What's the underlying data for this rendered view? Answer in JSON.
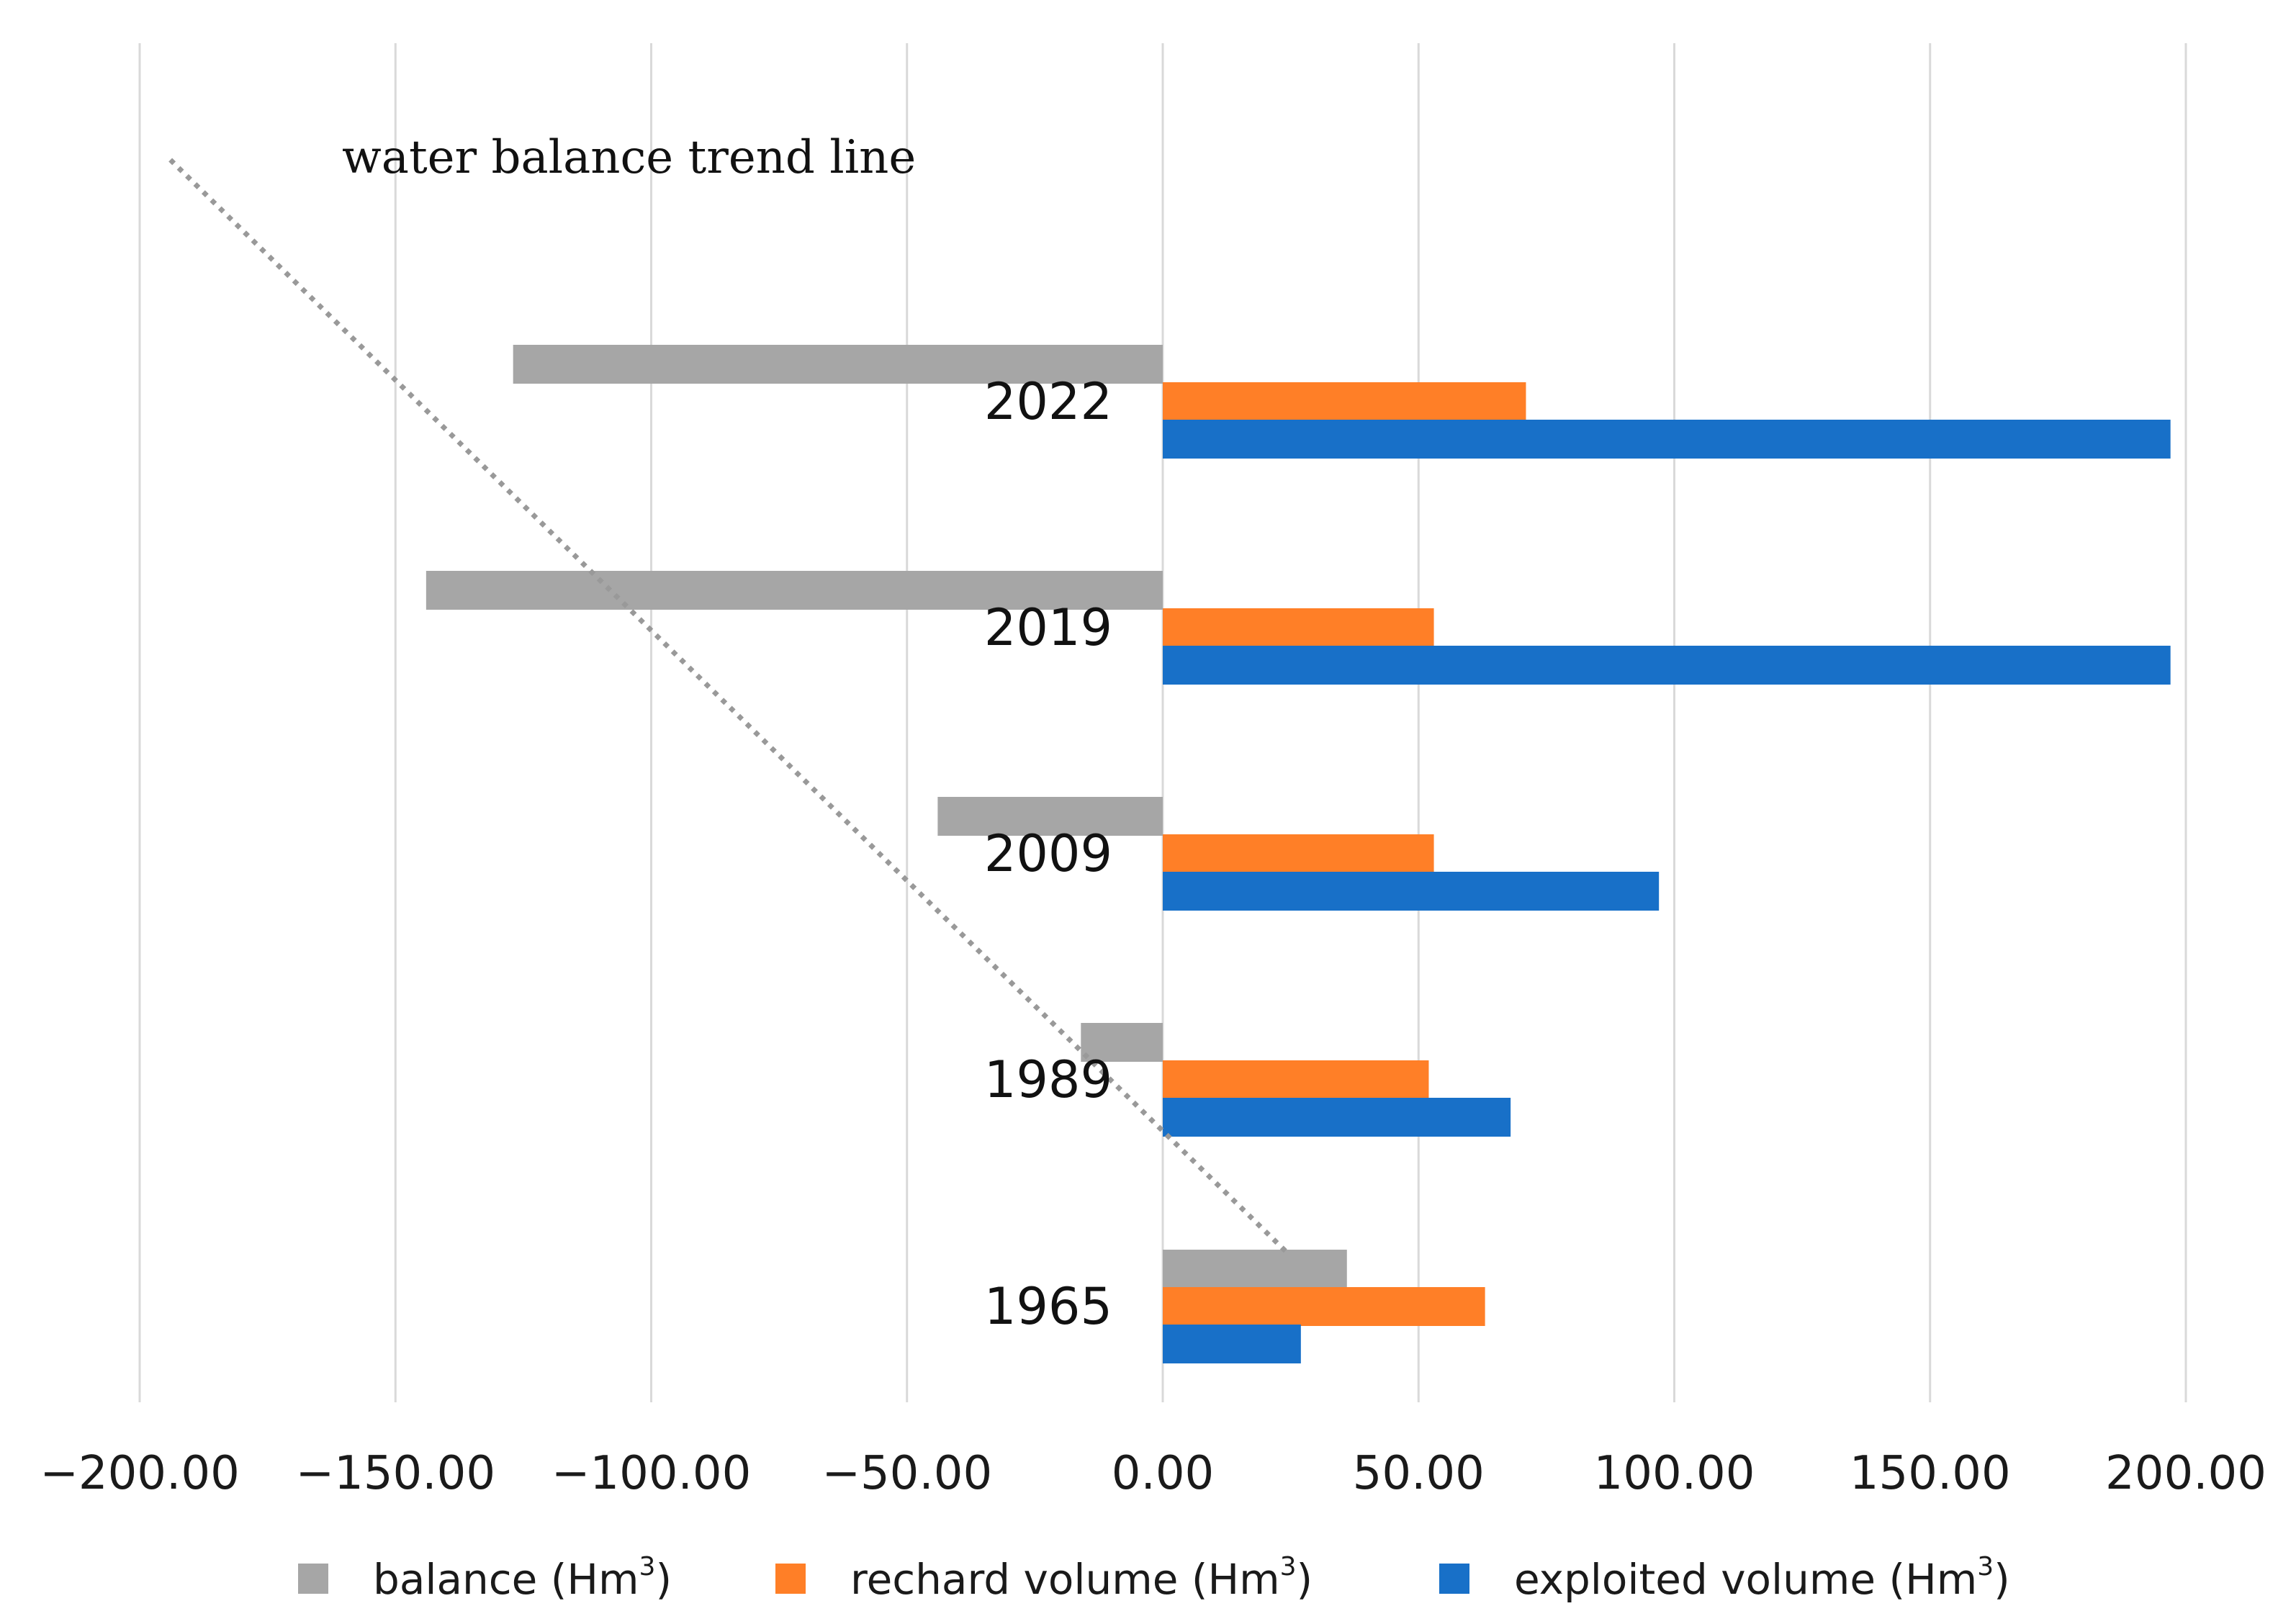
{
  "chart_data": {
    "type": "bar",
    "orientation": "horizontal",
    "categories": [
      "1965",
      "1989",
      "2009",
      "2019",
      "2022"
    ],
    "series": [
      {
        "name": "balance",
        "unit": "Hm",
        "unit_sup": "3",
        "color": "#a6a6a6",
        "values": [
          36,
          -16,
          -44,
          -144,
          -127
        ]
      },
      {
        "name": "rechard volume",
        "unit": "Hm",
        "unit_sup": "3",
        "color": "#ff7f27",
        "values": [
          63,
          52,
          53,
          53,
          71
        ]
      },
      {
        "name": "exploited volume",
        "unit": "Hm",
        "unit_sup": "3",
        "color": "#1870c8",
        "values": [
          27,
          68,
          97,
          197,
          197
        ]
      }
    ],
    "xlim": [
      -200,
      200
    ],
    "xticks": [
      -200,
      -150,
      -100,
      -50,
      0,
      50,
      100,
      150,
      200
    ],
    "xtick_labels": [
      "−200.00",
      "−150.00",
      "−100.00",
      "−50.00",
      "0.00",
      "50.00",
      "100.00",
      "150.00",
      "200.00"
    ],
    "grid": "vertical",
    "legend_position": "bottom",
    "annotation": "water balance trend line",
    "trend_line": {
      "style": "dotted",
      "color": "#999999",
      "start_value": -194,
      "end_value": 24
    }
  }
}
